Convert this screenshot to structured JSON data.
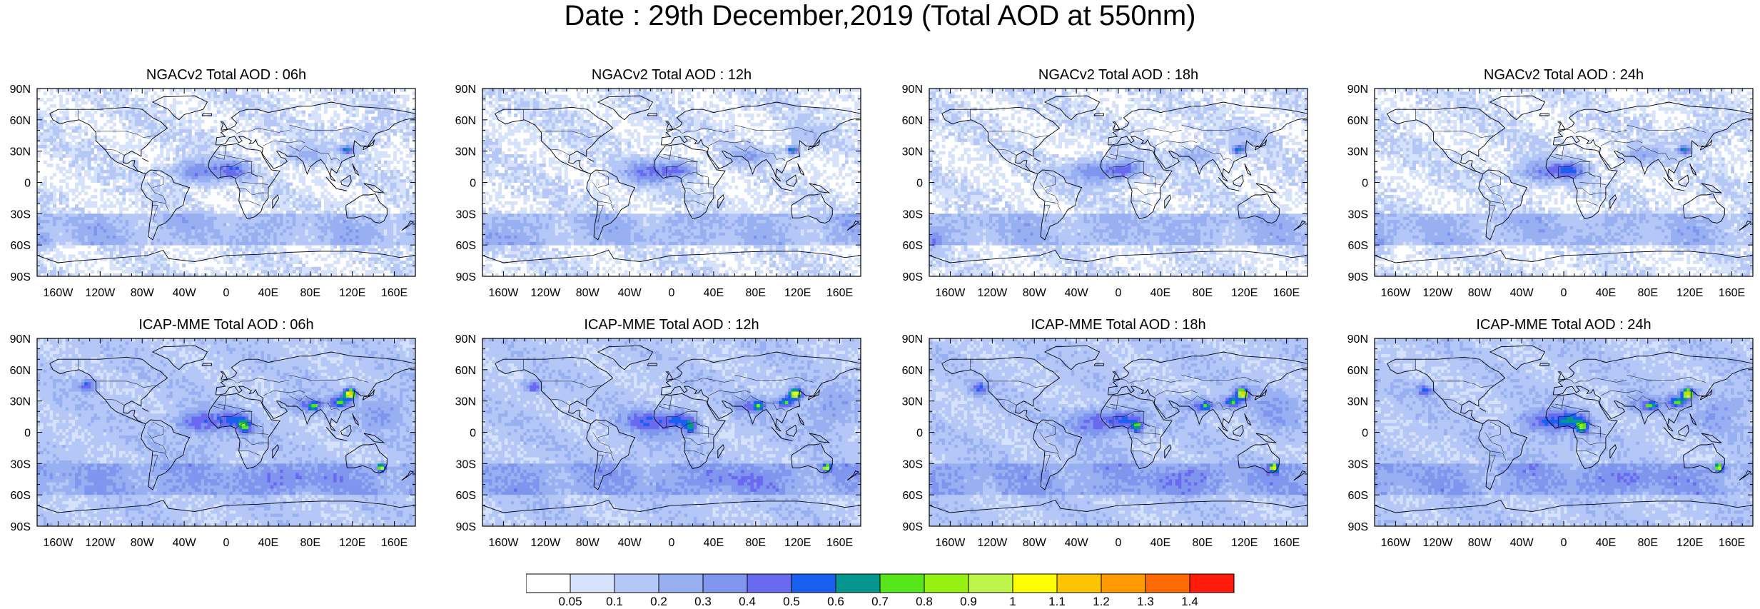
{
  "title": "Date : 29th December,2019 (Total AOD at 550nm)",
  "panels": [
    {
      "title": "NGACv2 Total AOD : 06h",
      "model": "NGACv2",
      "lead": "06h"
    },
    {
      "title": "NGACv2 Total AOD : 12h",
      "model": "NGACv2",
      "lead": "12h"
    },
    {
      "title": "NGACv2 Total AOD : 18h",
      "model": "NGACv2",
      "lead": "18h"
    },
    {
      "title": "NGACv2 Total AOD : 24h",
      "model": "NGACv2",
      "lead": "24h"
    },
    {
      "title": "ICAP-MME Total AOD : 06h",
      "model": "ICAP-MME",
      "lead": "06h"
    },
    {
      "title": "ICAP-MME Total AOD : 12h",
      "model": "ICAP-MME",
      "lead": "12h"
    },
    {
      "title": "ICAP-MME Total AOD : 18h",
      "model": "ICAP-MME",
      "lead": "18h"
    },
    {
      "title": "ICAP-MME Total AOD : 24h",
      "model": "ICAP-MME",
      "lead": "24h"
    }
  ],
  "lat_ticks": [
    "90N",
    "60N",
    "30N",
    "0",
    "30S",
    "60S",
    "90S"
  ],
  "lon_ticks": [
    "160W",
    "120W",
    "80W",
    "40W",
    "0",
    "40E",
    "80E",
    "120E",
    "160E"
  ],
  "colorbar": {
    "labels": [
      "0.05",
      "0.1",
      "0.2",
      "0.3",
      "0.4",
      "0.5",
      "0.6",
      "0.7",
      "0.8",
      "0.9",
      "1",
      "1.1",
      "1.2",
      "1.3",
      "1.4"
    ],
    "colors": [
      "#ffffff",
      "#d6e2fb",
      "#b4c7f7",
      "#98b0f1",
      "#7f95ee",
      "#6a6af0",
      "#1a60f0",
      "#05978f",
      "#56e61a",
      "#96f012",
      "#bdf54a",
      "#ffff00",
      "#ffc400",
      "#ff9b00",
      "#ff6a00",
      "#ff1a0a"
    ]
  }
}
